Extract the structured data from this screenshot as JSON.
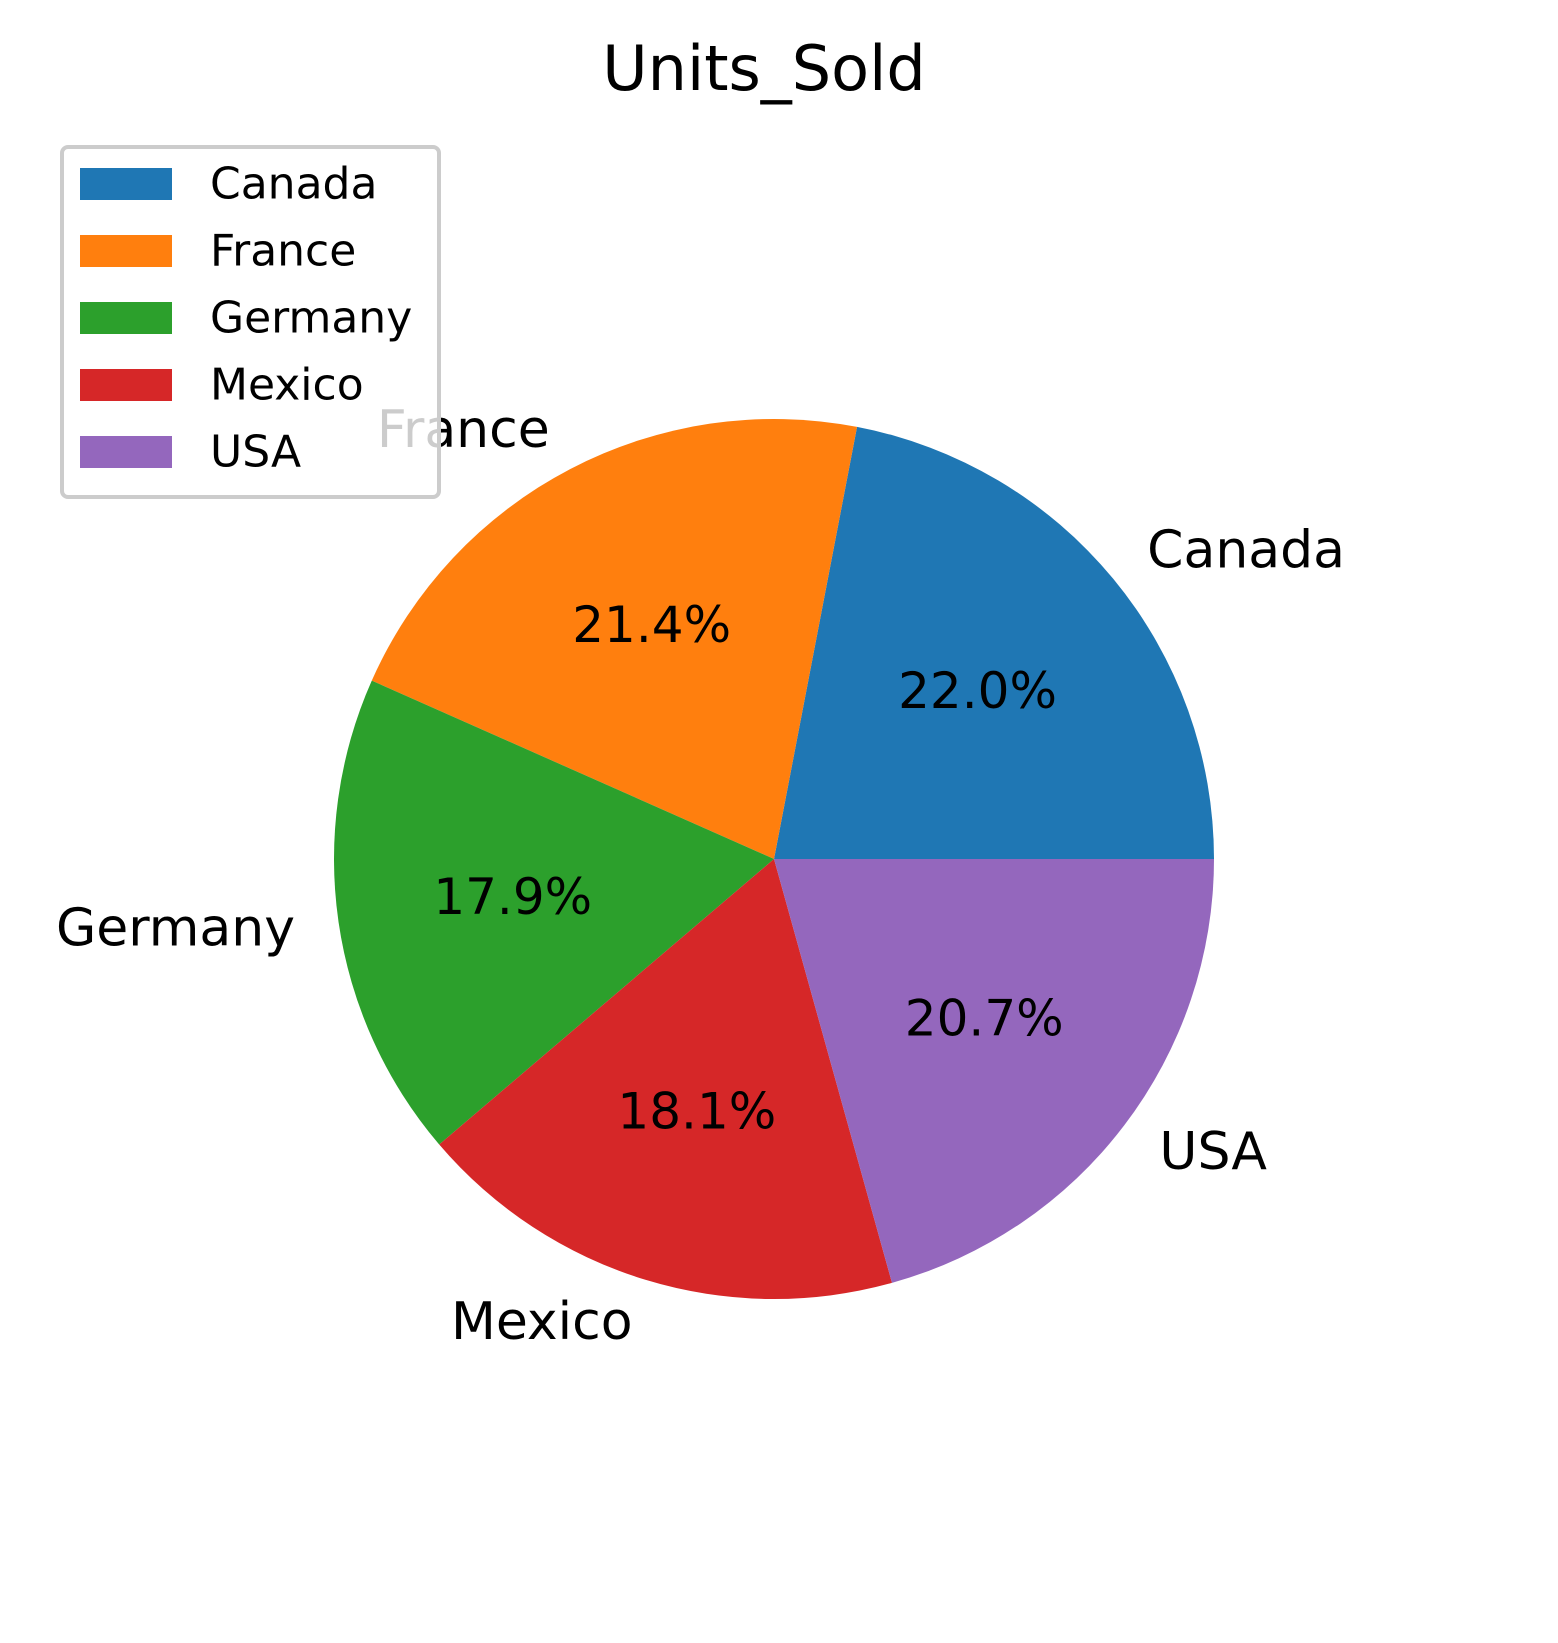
{
  "chart_data": {
    "type": "pie",
    "title": "Units_Sold",
    "slices": [
      {
        "label": "Canada",
        "value": 22.0,
        "pct_label": "22.0%",
        "color": "#1f77b4"
      },
      {
        "label": "France",
        "value": 21.4,
        "pct_label": "21.4%",
        "color": "#ff7f0e"
      },
      {
        "label": "Germany",
        "value": 17.9,
        "pct_label": "17.9%",
        "color": "#2ca02c"
      },
      {
        "label": "Mexico",
        "value": 18.1,
        "pct_label": "18.1%",
        "color": "#d62728"
      },
      {
        "label": "USA",
        "value": 20.7,
        "pct_label": "20.7%",
        "color": "#9467bd"
      }
    ],
    "start_angle_deg": 0,
    "direction": "counterclockwise",
    "legend": {
      "placement": "upper-left",
      "entries": [
        "Canada",
        "France",
        "Germany",
        "Mexico",
        "USA"
      ]
    }
  }
}
